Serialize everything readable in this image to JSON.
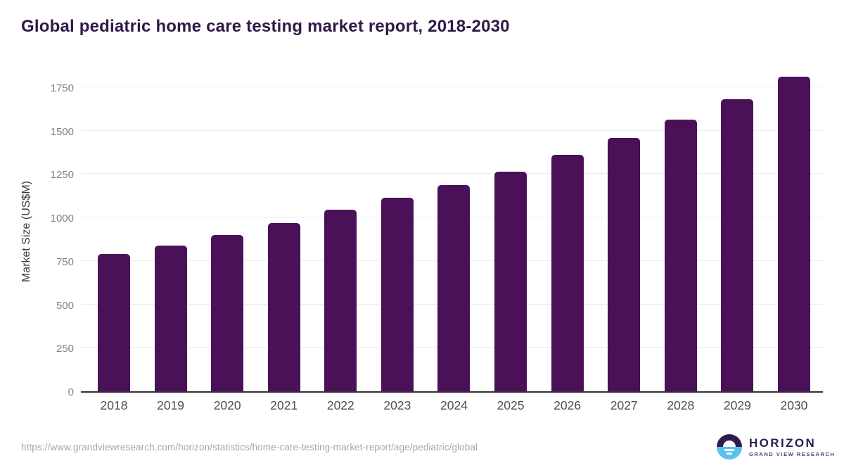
{
  "title": "Global pediatric home care testing market report, 2018-2030",
  "chart_data": {
    "type": "bar",
    "title": "Global pediatric home care testing market report, 2018-2030",
    "categories": [
      "2018",
      "2019",
      "2020",
      "2021",
      "2022",
      "2023",
      "2024",
      "2025",
      "2026",
      "2027",
      "2028",
      "2029",
      "2030"
    ],
    "values": [
      790,
      840,
      900,
      970,
      1045,
      1115,
      1185,
      1265,
      1360,
      1460,
      1565,
      1680,
      1810
    ],
    "xlabel": "",
    "ylabel": "Market Size (US$M)",
    "ylim": [
      0,
      1855
    ],
    "yticks": [
      0,
      250,
      500,
      750,
      1000,
      1250,
      1500,
      1750
    ],
    "grid": "horizontal gridlines on, light gray",
    "legend": "none",
    "bar_color": "#4a1159"
  },
  "colors": {
    "title_text": "#2e1a47",
    "bar": "#4a1159",
    "gridline": "#ececec",
    "axis_line": "#333333",
    "y_tick_text": "#818181",
    "x_tick_text": "#4d4d4d",
    "url_text": "#a6a6a6",
    "logo_purple": "#2f1c4e",
    "logo_blue": "#5ac1ef"
  },
  "footer": {
    "source_url": "https://www.grandviewresearch.com/horizon/statistics/home-care-testing-market-report/age/pediatric/global",
    "logo": {
      "brand": "HORIZON",
      "sub_brand": "GRAND VIEW RESEARCH"
    }
  }
}
